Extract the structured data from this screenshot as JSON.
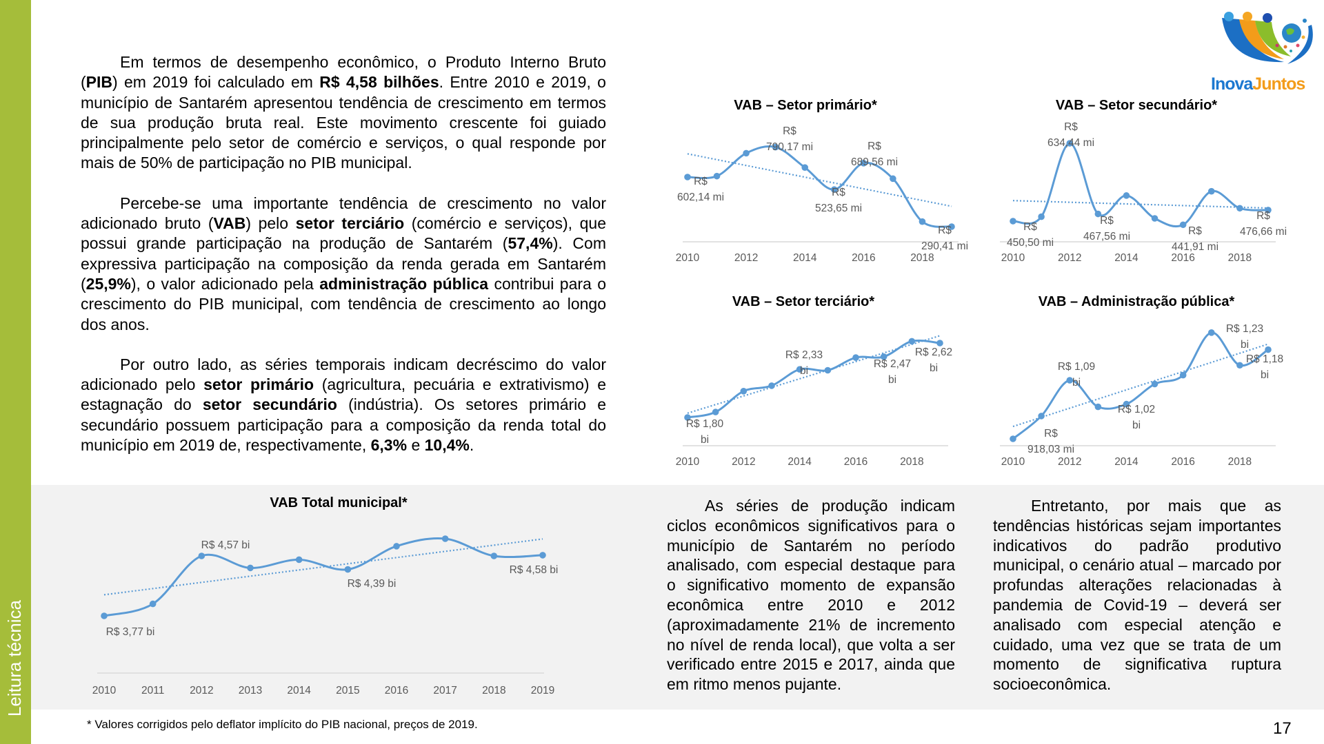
{
  "sidebar": {
    "label": "Leitura técnica",
    "color": "#a5bd3a"
  },
  "logo": {
    "text_part1": "Inova",
    "text_part2": "Juntos"
  },
  "left_paragraphs": [
    [
      {
        "t": "Em termos de desempenho econômico, o Produto Interno Bruto (",
        "b": false
      },
      {
        "t": "PIB",
        "b": true
      },
      {
        "t": ") em 2019 foi calculado em ",
        "b": false
      },
      {
        "t": "R$  4,58 bilhões",
        "b": true
      },
      {
        "t": ". Entre 2010 e 2019, o município de Santarém apresentou tendência de crescimento em termos de sua produção bruta real. Este movimento crescente foi guiado principalmente pelo setor de comércio e serviços, o qual responde por mais de 50% de participação no PIB municipal.",
        "b": false
      }
    ],
    [
      {
        "t": "Percebe-se uma importante tendência de crescimento no valor adicionado bruto (",
        "b": false
      },
      {
        "t": "VAB",
        "b": true
      },
      {
        "t": ") pelo ",
        "b": false
      },
      {
        "t": "setor terciário",
        "b": true
      },
      {
        "t": " (comércio e serviços), que possui grande participação na produção de Santarém (",
        "b": false
      },
      {
        "t": "57,4%",
        "b": true
      },
      {
        "t": "). Com expressiva participação na composição da renda gerada em Santarém (",
        "b": false
      },
      {
        "t": "25,9%",
        "b": true
      },
      {
        "t": "), o valor adicionado pela ",
        "b": false
      },
      {
        "t": "administração pública",
        "b": true
      },
      {
        "t": " contribui para o crescimento do PIB municipal, com tendência de crescimento ao longo dos anos.",
        "b": false
      }
    ],
    [
      {
        "t": "Por outro lado, as séries temporais indicam decréscimo do valor adicionado pelo ",
        "b": false
      },
      {
        "t": "setor primário",
        "b": true
      },
      {
        "t": " (agricultura, pecuária e extrativismo) e estagnação do ",
        "b": false
      },
      {
        "t": "setor secundário",
        "b": true
      },
      {
        "t": " (indústria). Os setores primário e secundário possuem participação para a composição da renda total do município em 2019 de, respectivamente, ",
        "b": false
      },
      {
        "t": "6,3%",
        "b": true
      },
      {
        "t": " e ",
        "b": false
      },
      {
        "t": "10,4%",
        "b": true
      },
      {
        "t": ".",
        "b": false
      }
    ]
  ],
  "bottom_text": {
    "col1": "As séries de produção indicam ciclos econômicos significativos para o município de Santarém no período analisado, com especial destaque para o significativo momento de expansão econômica entre 2010 e 2012 (aproximadamente 21% de incremento no nível de renda local), que volta a ser verificado entre 2015 e 2017, ainda que em ritmo menos pujante.",
    "col2": "Entretanto, por mais que as tendências históricas sejam importantes indicativos do padrão produtivo municipal, o cenário atual – marcado por profundas alterações relacionadas à pandemia de Covid-19 – deverá ser analisado com especial atenção e cuidado, uma vez que se trata de um momento de significativa ruptura socioeconômica."
  },
  "footnote": "* Valores corrigidos pelo deflator implícito do PIB nacional, preços de 2019.",
  "page_number": "17",
  "colors": {
    "series": "#5b9bd5",
    "band": "#f2f2f2",
    "axis": "#d9d9d9"
  },
  "chart_data": [
    {
      "id": "primario",
      "type": "line",
      "title": "VAB – Setor primário*",
      "unit": "R$ milhões",
      "x": [
        2010,
        2011,
        2012,
        2013,
        2014,
        2015,
        2016,
        2017,
        2018,
        2019
      ],
      "values": [
        602.14,
        608,
        752,
        790.17,
        662,
        523.65,
        689.56,
        592,
        322,
        290.41
      ],
      "tick_labels": [
        "2010",
        "2012",
        "2014",
        "2016",
        "2018"
      ],
      "trendline": "linear",
      "data_labels": [
        {
          "i": 0,
          "lines": [
            "R$",
            "602,14 mi"
          ]
        },
        {
          "i": 3,
          "lines": [
            "R$",
            "790,17 mi"
          ]
        },
        {
          "i": 5,
          "lines": [
            "R$",
            "523,65 mi"
          ]
        },
        {
          "i": 6,
          "lines": [
            "R$",
            "689,56 mi"
          ]
        },
        {
          "i": 9,
          "lines": [
            "R$",
            "290,41 mi"
          ]
        }
      ]
    },
    {
      "id": "secundario",
      "type": "line",
      "title": "VAB – Setor secundário*",
      "unit": "R$ milhões",
      "x": [
        2010,
        2011,
        2012,
        2013,
        2014,
        2015,
        2016,
        2017,
        2018,
        2019
      ],
      "values": [
        450.5,
        461,
        634.44,
        467.56,
        511,
        457,
        441.91,
        521,
        481,
        476.66
      ],
      "tick_labels": [
        "2010",
        "2012",
        "2014",
        "2016",
        "2018"
      ],
      "trendline": "linear",
      "data_labels": [
        {
          "i": 0,
          "lines": [
            "R$",
            "450,50 mi"
          ]
        },
        {
          "i": 2,
          "lines": [
            "R$",
            "634,44 mi"
          ]
        },
        {
          "i": 3,
          "lines": [
            "R$",
            "467,56 mi"
          ]
        },
        {
          "i": 6,
          "lines": [
            "R$",
            "441,91 mi"
          ]
        },
        {
          "i": 9,
          "lines": [
            "R$",
            "476,66 mi"
          ]
        }
      ]
    },
    {
      "id": "terciario",
      "type": "line",
      "title": "VAB – Setor terciário*",
      "unit": "R$ bilhões",
      "x": [
        2010,
        2011,
        2012,
        2013,
        2014,
        2015,
        2016,
        2017,
        2018,
        2019
      ],
      "values": [
        1.8,
        1.86,
        2.09,
        2.15,
        2.33,
        2.32,
        2.46,
        2.47,
        2.64,
        2.62
      ],
      "tick_labels": [
        "2010",
        "2012",
        "2014",
        "2016",
        "2018"
      ],
      "trendline": "linear",
      "data_labels": [
        {
          "i": 0,
          "lines": [
            "R$ 1,80",
            "bi"
          ]
        },
        {
          "i": 4,
          "lines": [
            "R$ 2,33",
            "bi"
          ]
        },
        {
          "i": 7,
          "lines": [
            "R$ 2,47",
            "bi"
          ]
        },
        {
          "i": 9,
          "lines": [
            "R$ 2,62",
            "bi"
          ]
        }
      ]
    },
    {
      "id": "administracao",
      "type": "line",
      "title": "VAB – Administração pública*",
      "unit": "R$ bilhões",
      "x": [
        2010,
        2011,
        2012,
        2013,
        2014,
        2015,
        2016,
        2017,
        2018,
        2019
      ],
      "values": [
        0.918,
        0.985,
        1.09,
        1.012,
        1.02,
        1.079,
        1.105,
        1.23,
        1.134,
        1.18
      ],
      "tick_labels": [
        "2010",
        "2012",
        "2014",
        "2016",
        "2018"
      ],
      "trendline": "linear",
      "data_labels": [
        {
          "i": 0,
          "lines": [
            "R$",
            "918,03 mi"
          ]
        },
        {
          "i": 2,
          "lines": [
            "R$ 1,09",
            "bi"
          ]
        },
        {
          "i": 4,
          "lines": [
            "R$ 1,02",
            "bi"
          ]
        },
        {
          "i": 7,
          "lines": [
            "R$ 1,23",
            "bi"
          ]
        },
        {
          "i": 9,
          "lines": [
            "R$ 1,18",
            "bi"
          ]
        }
      ]
    },
    {
      "id": "total",
      "type": "line",
      "title": "VAB Total municipal*",
      "unit": "R$ bilhões",
      "x": [
        2010,
        2011,
        2012,
        2013,
        2014,
        2015,
        2016,
        2017,
        2018,
        2019
      ],
      "values": [
        3.77,
        3.93,
        4.57,
        4.41,
        4.52,
        4.39,
        4.7,
        4.8,
        4.57,
        4.58
      ],
      "tick_labels": [
        "2010",
        "2011",
        "2012",
        "2013",
        "2014",
        "2015",
        "2016",
        "2017",
        "2018",
        "2019"
      ],
      "trendline": "linear",
      "data_labels": [
        {
          "i": 0,
          "lines": [
            "R$ 3,77 bi"
          ]
        },
        {
          "i": 2,
          "lines": [
            "R$ 4,57 bi"
          ]
        },
        {
          "i": 5,
          "lines": [
            "R$ 4,39 bi"
          ]
        },
        {
          "i": 9,
          "lines": [
            "R$ 4,58 bi"
          ]
        }
      ]
    }
  ]
}
